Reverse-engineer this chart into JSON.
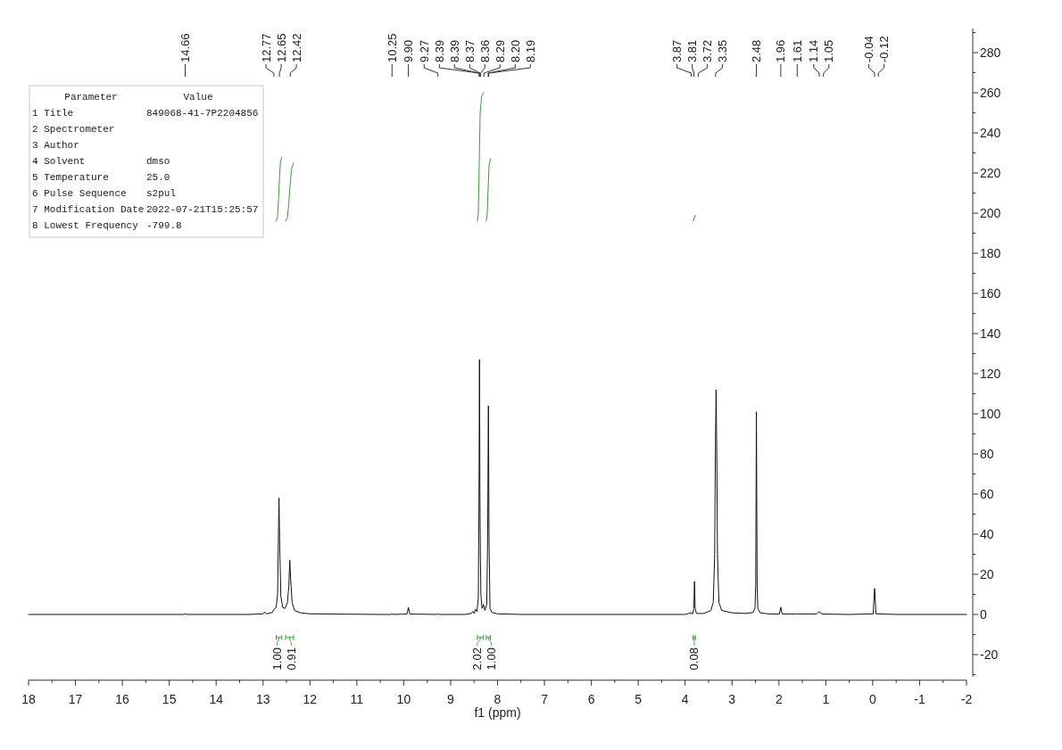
{
  "chart_data": [
    {
      "type": "other",
      "categories": [
        "Parameter",
        "Value"
      ],
      "cell_labels": [
        [
          "1 Title",
          "849068-41-7P2204856"
        ],
        [
          "2 Spectrometer",
          null
        ],
        [
          "3 Author",
          null
        ],
        [
          "4 Solvent",
          "dmso"
        ],
        [
          "5 Temperature",
          "25.0"
        ],
        [
          "6 Pulse Sequence",
          "s2pul"
        ],
        [
          "7 Modification Date",
          "2022-07-21T15:25:57"
        ],
        [
          "8 Lowest Frequency",
          "-799.8"
        ]
      ]
    },
    {
      "type": "line",
      "xlabel": "f1 (ppm)",
      "xlim": [
        18,
        -2
      ],
      "xticks": [
        18,
        {
          "value": 17.5,
          "label": null
        },
        17,
        {
          "value": 16.5,
          "label": null
        },
        16,
        {
          "value": 15.5,
          "label": null
        },
        15,
        {
          "value": 14.5,
          "label": null
        },
        14,
        {
          "value": 13.5,
          "label": null
        },
        13,
        {
          "value": 12.5,
          "label": null
        },
        12,
        {
          "value": 11.5,
          "label": null
        },
        11,
        {
          "value": 10.5,
          "label": null
        },
        10,
        {
          "value": 9.5,
          "label": null
        },
        9,
        {
          "value": 8.5,
          "label": null
        },
        8,
        {
          "value": 7.5,
          "label": null
        },
        7,
        {
          "value": 6.5,
          "label": null
        },
        6,
        {
          "value": 5.5,
          "label": null
        },
        5,
        {
          "value": 4.5,
          "label": null
        },
        4,
        {
          "value": 3.5,
          "label": null
        },
        3,
        {
          "value": 2.5,
          "label": null
        },
        2,
        {
          "value": 1.5,
          "label": null
        },
        1,
        {
          "value": 0.5,
          "label": null
        },
        0,
        {
          "value": -0.5,
          "label": null
        },
        -1,
        {
          "value": -1.5,
          "label": null
        },
        -2
      ],
      "ylim": [
        -31,
        292
      ],
      "yticks": [
        {
          "value": -30,
          "label": null
        },
        -20,
        {
          "value": -10,
          "label": null
        },
        0,
        {
          "value": 10,
          "label": null
        },
        20,
        {
          "value": 30,
          "label": null
        },
        40,
        {
          "value": 50,
          "label": null
        },
        60,
        {
          "value": 70,
          "label": null
        },
        80,
        {
          "value": 90,
          "label": null
        },
        100,
        {
          "value": 110,
          "label": null
        },
        120,
        {
          "value": 130,
          "label": null
        },
        140,
        {
          "value": 150,
          "label": null
        },
        160,
        {
          "value": 170,
          "label": null
        },
        180,
        {
          "value": 190,
          "label": null
        },
        200,
        {
          "value": 210,
          "label": null
        },
        220,
        {
          "value": 230,
          "label": null
        },
        240,
        {
          "value": 250,
          "label": null
        },
        260,
        {
          "value": 270,
          "label": null
        },
        280,
        {
          "value": 290,
          "label": null
        }
      ],
      "series": [
        {
          "color": "#111111",
          "x": [
            18,
            14.7,
            14.66,
            14.62,
            13.3,
            13.0,
            12.96,
            12.93,
            12.8,
            12.77,
            12.72,
            12.69,
            12.675,
            12.66,
            12.645,
            12.62,
            12.58,
            12.53,
            12.48,
            12.45,
            12.43,
            12.41,
            12.38,
            12.33,
            12.2,
            12.0,
            10.5,
            10.28,
            10.25,
            10.22,
            9.93,
            9.9,
            9.87,
            9.3,
            9.27,
            9.24,
            8.7,
            8.56,
            8.53,
            8.5,
            8.47,
            8.44,
            8.41,
            8.395,
            8.385,
            8.375,
            8.365,
            8.355,
            8.33,
            8.3,
            8.27,
            8.23,
            8.21,
            8.195,
            8.18,
            8.16,
            8.12,
            8.0,
            7.5,
            4.0,
            3.88,
            3.84,
            3.815,
            3.8,
            3.785,
            3.76,
            3.6,
            3.45,
            3.4,
            3.37,
            3.355,
            3.34,
            3.325,
            3.31,
            3.28,
            3.22,
            3.0,
            2.7,
            2.55,
            2.51,
            2.495,
            2.48,
            2.465,
            2.45,
            2.4,
            2.2,
            1.99,
            1.96,
            1.93,
            1.64,
            1.61,
            1.58,
            1.2,
            1.14,
            1.08,
            0.5,
            -0.01,
            -0.04,
            -0.07,
            -0.5,
            -2
          ],
          "values": [
            0,
            0,
            0.3,
            0,
            0,
            0.3,
            1.2,
            0.3,
            1,
            2.5,
            3.5,
            10,
            35,
            58,
            35,
            9,
            3.5,
            3,
            6,
            14,
            27,
            17,
            6,
            2,
            0.8,
            0.3,
            0,
            0,
            0.3,
            0,
            0.2,
            3.5,
            0.2,
            0,
            0.3,
            0,
            0,
            0.5,
            1.5,
            0.5,
            2.5,
            1.5,
            8,
            60,
            127,
            60,
            28,
            10,
            3,
            5,
            2,
            5,
            40,
            104,
            35,
            3,
            1,
            0.3,
            0,
            0,
            0.8,
            0.3,
            3,
            16.5,
            3,
            0.5,
            0.5,
            2,
            6,
            30,
            80,
            112,
            80,
            30,
            6,
            2,
            0.8,
            0.5,
            1,
            3,
            15,
            101,
            15,
            3,
            0.8,
            0.2,
            0.2,
            3.6,
            0.2,
            0.2,
            0.4,
            0.2,
            0.2,
            1.4,
            0.2,
            0,
            0.3,
            13,
            0.3,
            0,
            0
          ]
        },
        {
          "color": "#3d9b3d",
          "x": [
            12.72,
            12.69,
            12.67,
            12.65,
            12.63,
            12.6
          ],
          "values": [
            196,
            198,
            207,
            217,
            225,
            228
          ]
        },
        {
          "color": "#3d9b3d",
          "x": [
            12.52,
            12.48,
            12.45,
            12.42,
            12.39,
            12.35
          ],
          "values": [
            196,
            198,
            205,
            215,
            222,
            225
          ]
        },
        {
          "color": "#3d9b3d",
          "x": [
            8.43,
            8.41,
            8.39,
            8.37,
            8.34,
            8.3
          ],
          "values": [
            196,
            200,
            225,
            250,
            258,
            260
          ]
        },
        {
          "color": "#3d9b3d",
          "x": [
            8.24,
            8.22,
            8.2,
            8.18,
            8.15
          ],
          "values": [
            196,
            200,
            212,
            224,
            227
          ]
        },
        {
          "color": "#3d9b3d",
          "x": [
            3.83,
            3.78
          ],
          "values": [
            196,
            199
          ]
        }
      ],
      "annotations": [
        {
          "text": "14.66",
          "x": 14.66
        },
        {
          "text": "12.77",
          "x": 12.77
        },
        {
          "text": "12.65",
          "x": 12.65
        },
        {
          "text": "12.42",
          "x": 12.42
        },
        {
          "text": "10.25",
          "x": 10.25
        },
        {
          "text": "9.90",
          "x": 9.9
        },
        {
          "text": "9.27",
          "x": 9.27
        },
        {
          "text": "8.39",
          "x": 8.39
        },
        {
          "text": "8.39",
          "x": 8.39
        },
        {
          "text": "8.37",
          "x": 8.37
        },
        {
          "text": "8.36",
          "x": 8.36
        },
        {
          "text": "8.29",
          "x": 8.29
        },
        {
          "text": "8.20",
          "x": 8.2
        },
        {
          "text": "8.19",
          "x": 8.19
        },
        {
          "text": "3.87",
          "x": 3.87
        },
        {
          "text": "3.81",
          "x": 3.81
        },
        {
          "text": "3.72",
          "x": 3.72
        },
        {
          "text": "3.35",
          "x": 3.35
        },
        {
          "text": "2.48",
          "x": 2.48
        },
        {
          "text": "1.96",
          "x": 1.96
        },
        {
          "text": "1.61",
          "x": 1.61
        },
        {
          "text": "1.14",
          "x": 1.14
        },
        {
          "text": "1.05",
          "x": 1.05
        },
        {
          "text": "-0.04",
          "x": -0.04
        },
        {
          "text": "-0.12",
          "x": -0.12
        },
        "1.00",
        "0.91",
        "2.02",
        "1.00",
        "0.08"
      ]
    }
  ]
}
